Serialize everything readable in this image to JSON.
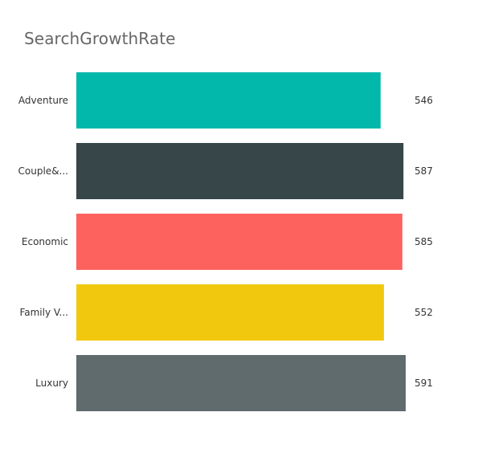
{
  "chart_data": {
    "type": "bar",
    "orientation": "horizontal",
    "title": "SearchGrowthRate",
    "categories": [
      "Adventure",
      "Couple&...",
      "Economic",
      "Family V...",
      "Luxury"
    ],
    "values": [
      546,
      587,
      585,
      552,
      591
    ],
    "value_labels": [
      "546",
      "587",
      "585",
      "552",
      "591"
    ],
    "colors": [
      "#01B8AA",
      "#374649",
      "#FD625E",
      "#F2C80F",
      "#5F6B6D"
    ],
    "xlim": [
      0,
      591
    ],
    "grid": false,
    "legend": "none"
  }
}
